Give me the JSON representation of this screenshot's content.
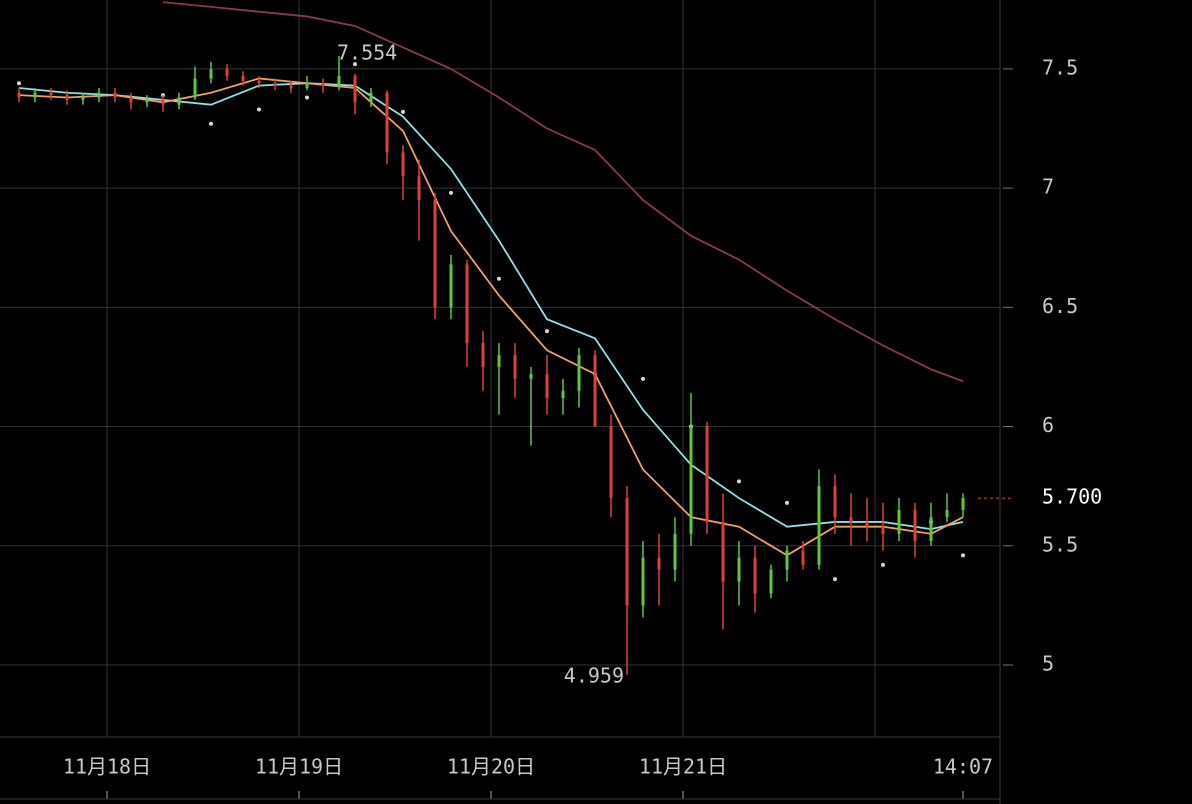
{
  "chart_data": {
    "type": "candlestick",
    "ohlc": {
      "open": [
        7.4,
        7.38,
        7.4,
        7.39,
        7.37,
        7.38,
        7.4,
        7.38,
        7.36,
        7.37,
        7.35,
        7.38,
        7.46,
        7.5,
        7.47,
        7.45,
        7.44,
        7.43,
        7.42,
        7.44,
        7.43,
        7.47,
        7.36,
        7.4,
        7.15,
        7.05,
        6.95,
        6.5,
        6.68,
        6.35,
        6.25,
        6.3,
        6.2,
        6.22,
        6.12,
        6.15,
        6.3,
        6.0,
        5.7,
        5.25,
        5.45,
        5.4,
        5.55,
        6.0,
        5.6,
        5.35,
        5.45,
        5.3,
        5.4,
        5.48,
        5.42,
        5.75,
        5.62,
        5.6,
        5.58,
        5.55,
        5.65,
        5.52,
        5.62,
        5.65
      ],
      "high": [
        7.42,
        7.42,
        7.42,
        7.41,
        7.4,
        7.42,
        7.42,
        7.4,
        7.39,
        7.39,
        7.4,
        7.51,
        7.53,
        7.52,
        7.49,
        7.47,
        7.46,
        7.45,
        7.47,
        7.46,
        7.554,
        7.48,
        7.42,
        7.41,
        7.18,
        7.12,
        6.98,
        6.72,
        6.7,
        6.4,
        6.35,
        6.35,
        6.25,
        6.3,
        6.2,
        6.33,
        6.32,
        6.05,
        5.75,
        5.52,
        5.55,
        5.62,
        6.14,
        6.02,
        5.72,
        5.52,
        5.5,
        5.42,
        5.5,
        5.52,
        5.82,
        5.8,
        5.72,
        5.7,
        5.68,
        5.7,
        5.68,
        5.68,
        5.72,
        5.72
      ],
      "low": [
        7.36,
        7.36,
        7.37,
        7.35,
        7.35,
        7.36,
        7.36,
        7.33,
        7.34,
        7.32,
        7.33,
        7.37,
        7.44,
        7.45,
        7.43,
        7.42,
        7.41,
        7.4,
        7.41,
        7.4,
        7.41,
        7.31,
        7.34,
        7.1,
        6.95,
        6.78,
        6.45,
        6.45,
        6.25,
        6.15,
        6.05,
        6.12,
        5.92,
        6.05,
        6.05,
        6.08,
        6.05,
        5.62,
        4.959,
        5.2,
        5.25,
        5.35,
        5.5,
        5.55,
        5.15,
        5.25,
        5.22,
        5.28,
        5.35,
        5.4,
        5.4,
        5.55,
        5.5,
        5.52,
        5.48,
        5.52,
        5.45,
        5.5,
        5.6,
        5.62
      ],
      "close": [
        7.38,
        7.4,
        7.39,
        7.37,
        7.38,
        7.4,
        7.38,
        7.36,
        7.37,
        7.35,
        7.38,
        7.46,
        7.5,
        7.47,
        7.45,
        7.44,
        7.43,
        7.42,
        7.44,
        7.43,
        7.47,
        7.36,
        7.4,
        7.15,
        7.05,
        6.95,
        6.5,
        6.68,
        6.35,
        6.25,
        6.3,
        6.2,
        6.22,
        6.12,
        6.15,
        6.3,
        6.0,
        5.7,
        5.25,
        5.45,
        5.4,
        5.55,
        6.0,
        5.6,
        5.35,
        5.45,
        5.3,
        5.4,
        5.48,
        5.42,
        5.75,
        5.62,
        5.6,
        5.58,
        5.55,
        5.65,
        5.52,
        5.62,
        5.65,
        5.7
      ]
    },
    "up_color": "#5cc93d",
    "down_color": "#d9462f",
    "line_x": [
      0,
      3,
      6,
      9,
      12,
      15,
      18,
      21,
      24,
      27,
      30,
      33,
      36,
      39,
      42,
      45,
      48,
      51,
      54,
      57,
      59
    ],
    "lines": [
      {
        "color": "#8a3a4a",
        "values": [
          null,
          null,
          null,
          7.78,
          7.76,
          7.74,
          7.72,
          7.68,
          7.59,
          7.5,
          7.38,
          7.25,
          7.16,
          6.95,
          6.8,
          6.7,
          6.57,
          6.45,
          6.34,
          6.24,
          6.19
        ]
      },
      {
        "color": "#8fe0e8",
        "values": [
          7.42,
          7.4,
          7.39,
          7.37,
          7.35,
          7.43,
          7.44,
          7.43,
          7.3,
          7.08,
          6.78,
          6.45,
          6.37,
          6.07,
          5.84,
          5.7,
          5.58,
          5.6,
          5.6,
          5.57,
          5.6
        ]
      },
      {
        "color": "#f0a060",
        "values": [
          7.39,
          7.38,
          7.39,
          7.36,
          7.4,
          7.46,
          7.44,
          7.42,
          7.24,
          6.82,
          6.55,
          6.32,
          6.22,
          5.82,
          5.62,
          5.58,
          5.46,
          5.58,
          5.58,
          5.55,
          5.62
        ]
      }
    ],
    "sar": {
      "color": "#d8d8d8",
      "values": [
        7.44,
        null,
        null,
        7.39,
        7.27,
        7.33,
        7.38,
        7.52,
        7.32,
        6.98,
        6.62,
        6.4,
        6.22,
        6.2,
        6.0,
        5.77,
        5.68,
        5.36,
        5.42,
        5.6,
        5.46
      ]
    },
    "ylim": [
      4.698,
      7.789
    ],
    "yticks": [
      5,
      5.5,
      6,
      6.5,
      7,
      7.5
    ],
    "xgrid": [
      5.5,
      17.5,
      29.5,
      41.5,
      53.5
    ],
    "xticks": [
      {
        "value": 5.5,
        "label": "11月18日"
      },
      {
        "value": 17.5,
        "label": "11月19日"
      },
      {
        "value": 29.5,
        "label": "11月20日"
      },
      {
        "value": 41.5,
        "label": "11月21日"
      },
      {
        "value": 59,
        "label": "14:07"
      }
    ],
    "last_price": {
      "value": 5.7,
      "label": "5.700"
    },
    "high_note": {
      "index": 20,
      "value": 7.554,
      "label": "7.554"
    },
    "low_note": {
      "index": 38,
      "value": 4.959,
      "label": "4.959"
    },
    "grid": true
  }
}
